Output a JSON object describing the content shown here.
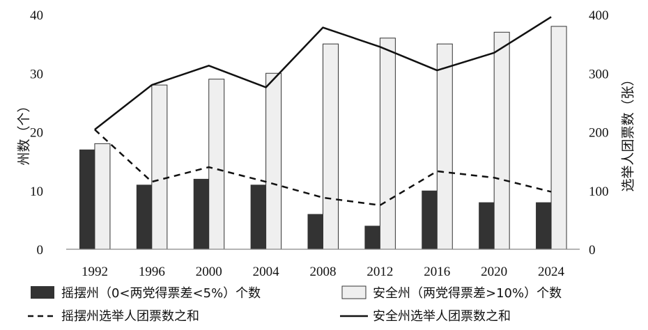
{
  "chart_data": {
    "type": "bar",
    "categories": [
      "1992",
      "1996",
      "2000",
      "2004",
      "2008",
      "2012",
      "2016",
      "2020",
      "2024"
    ],
    "series": [
      {
        "name": "摇摆州（0<两党得票差<5%）个数",
        "type": "bar",
        "axis": "left",
        "color": "#333333",
        "values": [
          17,
          11,
          12,
          11,
          6,
          4,
          10,
          8,
          8
        ]
      },
      {
        "name": "安全州（两党得票差>10%）个数",
        "type": "bar",
        "axis": "left",
        "color": "#efefef",
        "values": [
          18,
          28,
          29,
          30,
          35,
          36,
          35,
          37,
          38
        ]
      },
      {
        "name": "摇摆州选举人团票数之和",
        "type": "line",
        "style": "dashed",
        "axis": "right",
        "color": "#111111",
        "values": [
          204,
          115,
          140,
          115,
          88,
          75,
          133,
          122,
          98
        ]
      },
      {
        "name": "安全州选举人团票数之和",
        "type": "line",
        "style": "solid",
        "axis": "right",
        "color": "#111111",
        "values": [
          204,
          280,
          313,
          276,
          378,
          345,
          305,
          335,
          396
        ]
      }
    ],
    "y_left": {
      "label": "州数（个）",
      "ylim": [
        0,
        40
      ],
      "ticks": [
        "0",
        "10",
        "20",
        "30",
        "40"
      ]
    },
    "y_right": {
      "label": "选举人团票数（张）",
      "ylim": [
        0,
        400
      ],
      "ticks": [
        "0",
        "100",
        "200",
        "300",
        "400"
      ]
    },
    "grid": false,
    "legend_position": "bottom"
  }
}
